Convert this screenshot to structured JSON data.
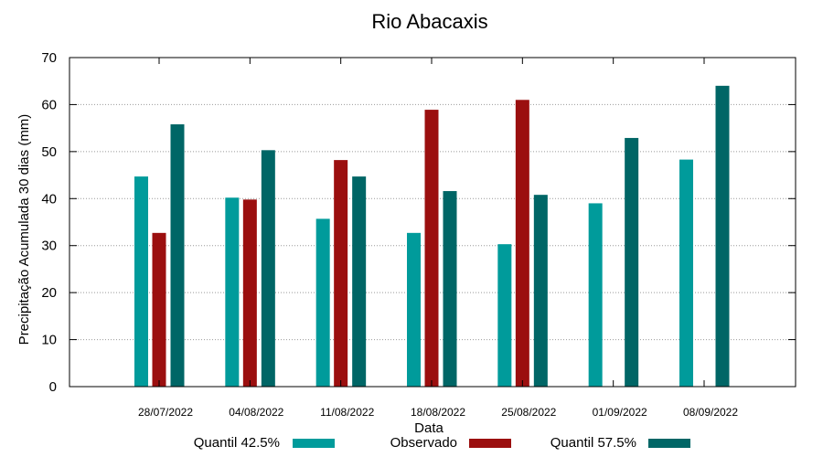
{
  "colors": {
    "quantil_425": "#009b9b",
    "observado": "#9b0f0f",
    "quantil_575": "#006666",
    "grid": "#999999",
    "axis": "#000000"
  },
  "chart_data": {
    "type": "bar",
    "title": "Rio Abacaxis",
    "xlabel": "Data",
    "ylabel": "Precipitação Acumulada 30 dias (mm)",
    "ylim": [
      0,
      70
    ],
    "yticks": [
      0,
      10,
      20,
      30,
      40,
      50,
      60,
      70
    ],
    "grid": true,
    "legend_position": "bottom",
    "categories": [
      "28/07/2022",
      "04/08/2022",
      "11/08/2022",
      "18/08/2022",
      "25/08/2022",
      "01/09/2022",
      "08/09/2022"
    ],
    "series": [
      {
        "name": "Quantil 42.5%",
        "color": "#009b9b",
        "values": [
          44.7,
          40.2,
          35.7,
          32.7,
          30.3,
          39.0,
          48.3
        ]
      },
      {
        "name": "Observado",
        "color": "#9b0f0f",
        "values": [
          32.7,
          39.8,
          48.2,
          58.9,
          61.0,
          null,
          null
        ]
      },
      {
        "name": "Quantil 57.5%",
        "color": "#006666",
        "values": [
          55.8,
          50.3,
          44.7,
          41.6,
          40.8,
          52.9,
          64.0
        ]
      }
    ]
  }
}
